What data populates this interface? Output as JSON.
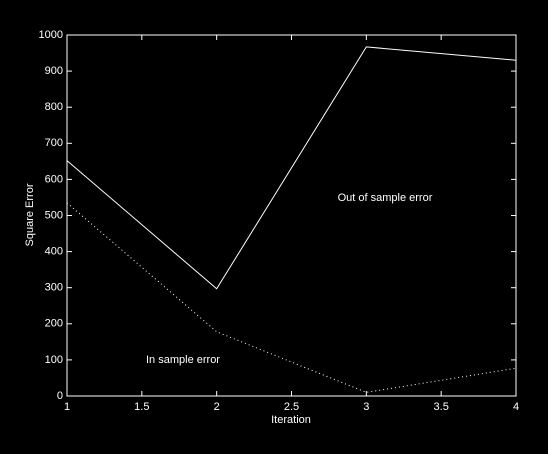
{
  "chart_data": {
    "type": "line",
    "x_label": "Iteration",
    "y_label": "Square Error",
    "x": [
      1,
      2,
      3,
      4
    ],
    "series": [
      {
        "name": "Out of sample error",
        "color": "#ffffff",
        "style": "solid",
        "values": [
          652,
          297,
          967,
          930
        ]
      },
      {
        "name": "In sample error",
        "color": "#ffffff",
        "style": "dotted",
        "values": [
          535,
          178,
          10,
          77
        ]
      }
    ],
    "xlim": [
      1,
      4
    ],
    "xticks": [
      1,
      1.5,
      2,
      2.5,
      3,
      3.5,
      4
    ],
    "ylim": [
      0,
      1000
    ],
    "yticks": [
      0,
      100,
      200,
      300,
      400,
      500,
      600,
      700,
      800,
      900,
      1000
    ],
    "grid": false
  }
}
